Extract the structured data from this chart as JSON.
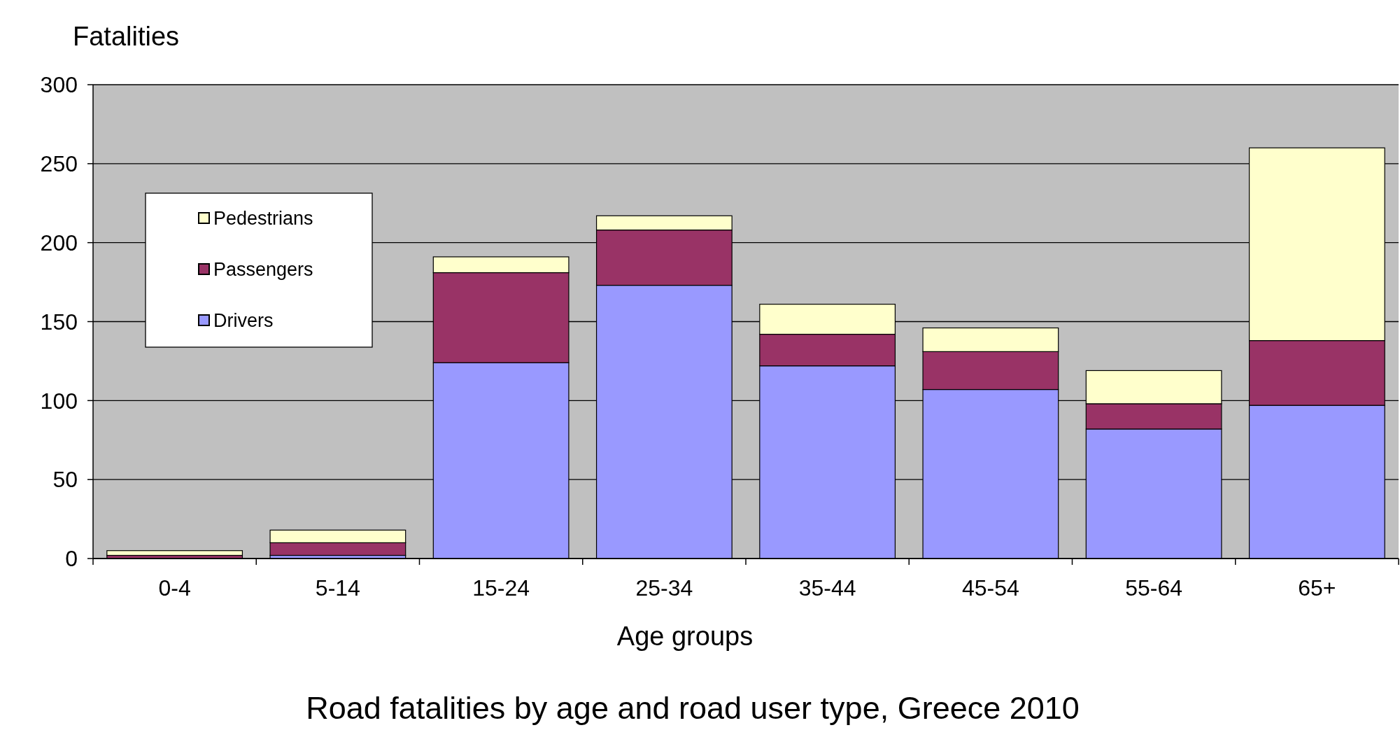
{
  "chart_data": {
    "type": "bar",
    "title": "Road fatalities by age and road user type, Greece 2010",
    "xlabel": "Age groups",
    "ylabel": "Fatalities",
    "categories": [
      "0-4",
      "5-14",
      "15-24",
      "25-34",
      "35-44",
      "45-54",
      "55-64",
      "65+"
    ],
    "series": [
      {
        "name": "Drivers",
        "color": "#9999ff",
        "values": [
          null,
          2,
          124,
          173,
          122,
          107,
          82,
          97
        ]
      },
      {
        "name": "Passengers",
        "color": "#993366",
        "values": [
          2,
          8,
          57,
          35,
          20,
          24,
          16,
          41
        ]
      },
      {
        "name": "Pedestrians",
        "color": "#ffffcc",
        "values": [
          3,
          8,
          10,
          9,
          19,
          15,
          21,
          122
        ]
      }
    ],
    "stacked": true,
    "ylim": [
      0,
      300
    ],
    "yticks": [
      0,
      50,
      100,
      150,
      200,
      250,
      300
    ],
    "grid": "y",
    "legend": "top left"
  }
}
